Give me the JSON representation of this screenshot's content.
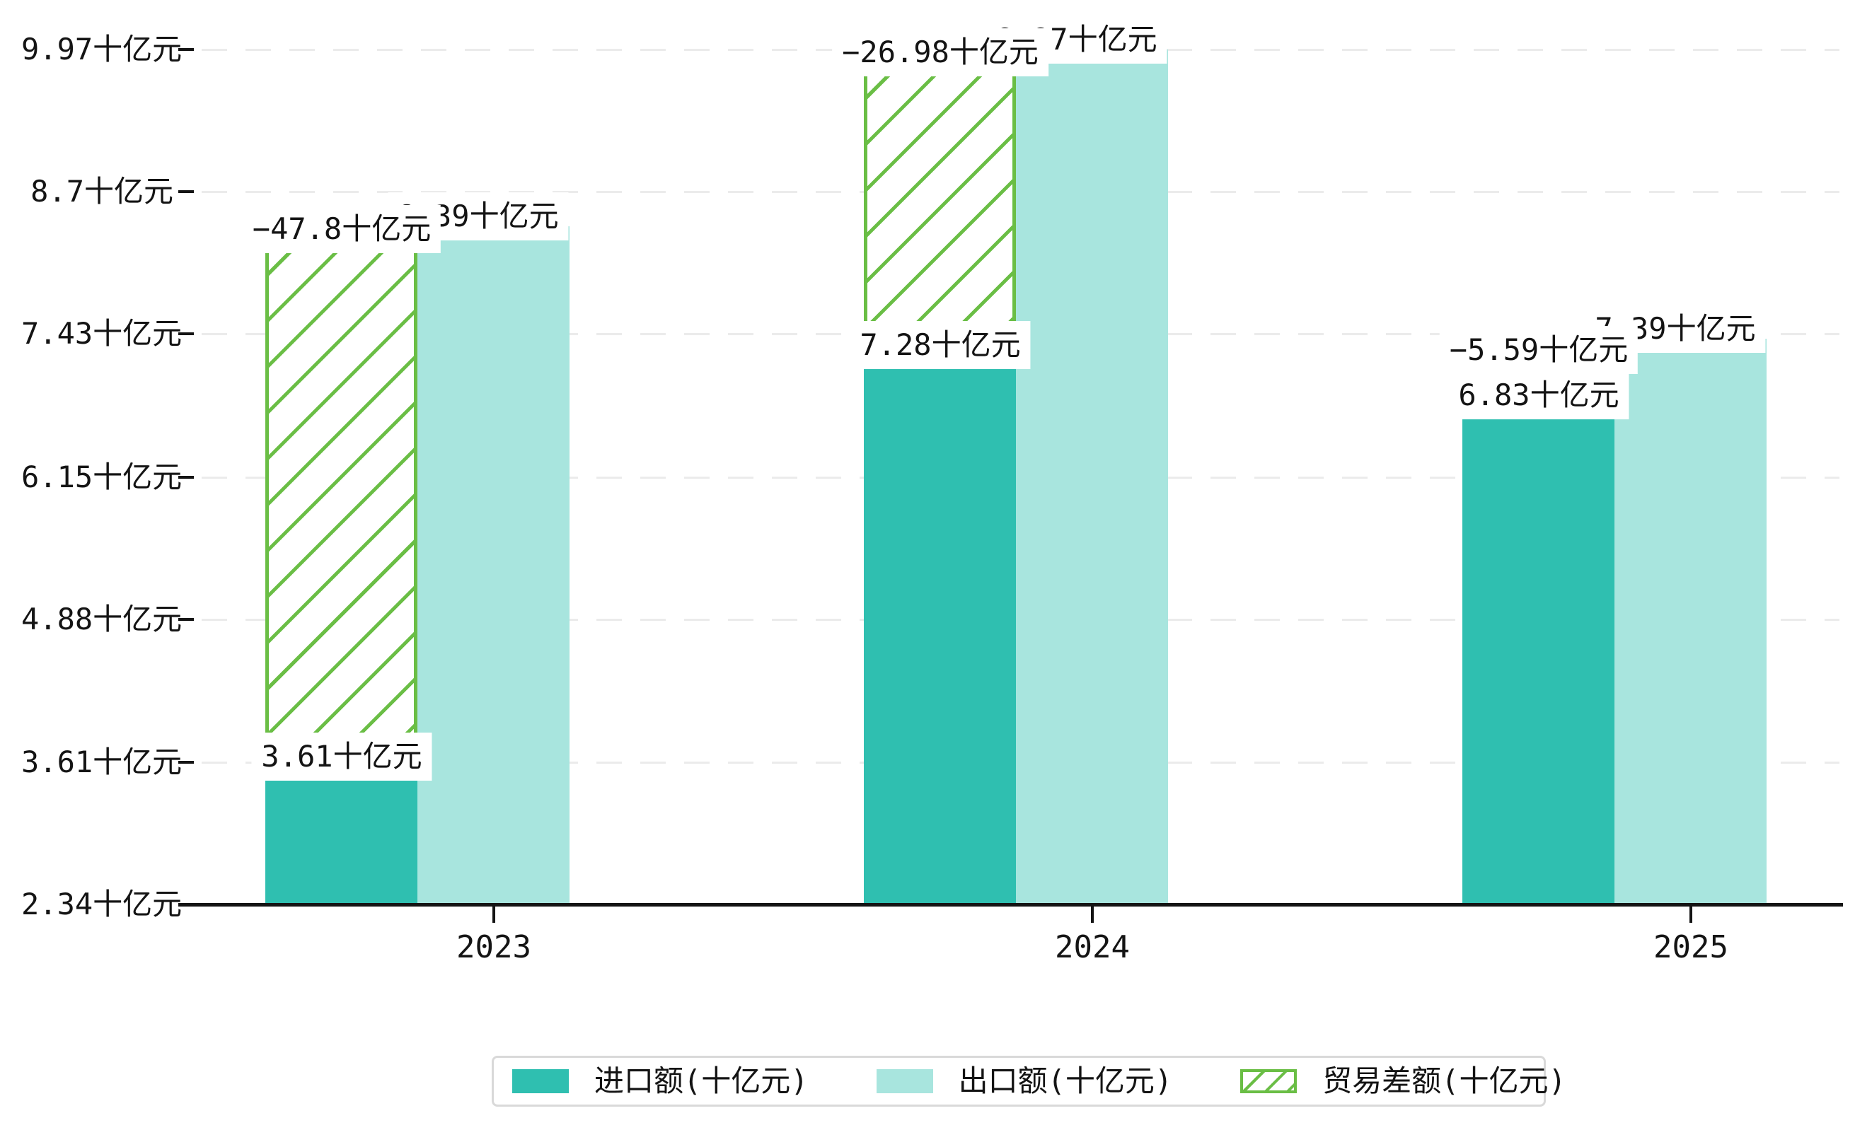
{
  "figure": {
    "background": "#ffffff"
  },
  "chart_data": {
    "type": "bar",
    "categories": [
      "2023",
      "2024",
      "2025"
    ],
    "unit": "十亿元",
    "series": [
      {
        "name": "进口额(十亿元)",
        "role": "import",
        "color": "#2fbfb0",
        "values": [
          3.61,
          7.28,
          6.83
        ],
        "labels": [
          "3.61十亿元",
          "7.28十亿元",
          "6.83十亿元"
        ]
      },
      {
        "name": "出口额(十亿元)",
        "role": "export",
        "color": "#a8e5de",
        "values": [
          8.39,
          9.97,
          7.39
        ],
        "labels": [
          "8.39十亿元",
          "9.97十亿元",
          "7.39十亿元"
        ]
      },
      {
        "name": "贸易差额(十亿元)",
        "role": "trade-balance",
        "color": "#6abe45",
        "pattern": "diagonal-hatch",
        "values": [
          -47.8,
          -26.98,
          -5.59
        ],
        "labels": [
          "−47.8十亿元",
          "−26.98十亿元",
          "−5.59十亿元"
        ],
        "bar_spans": [
          [
            3.61,
            8.39
          ],
          [
            7.28,
            9.97
          ],
          [
            6.83,
            7.39
          ]
        ]
      }
    ],
    "yaxis": {
      "min": 2.34,
      "max": 9.97,
      "grid": "dashed",
      "ticks": [
        {
          "value": 9.97,
          "label": "9.97十亿元"
        },
        {
          "value": 8.7,
          "label": "8.7十亿元"
        },
        {
          "value": 7.43,
          "label": "7.43十亿元"
        },
        {
          "value": 6.15,
          "label": "6.15十亿元"
        },
        {
          "value": 4.88,
          "label": "4.88十亿元"
        },
        {
          "value": 3.61,
          "label": "3.61十亿元"
        },
        {
          "value": 2.34,
          "label": "2.34十亿元"
        }
      ]
    },
    "legend": {
      "position": "bottom-center",
      "items": [
        "进口额(十亿元)",
        "出口额(十亿元)",
        "贸易差额(十亿元)"
      ]
    }
  },
  "colors": {
    "import_bar": "#2fbfb0",
    "export_bar": "#a8e5de",
    "balance_hatch": "#6abe45",
    "gridline": "#ebebeb",
    "axis": "#141414",
    "text": "#141414",
    "legend_border": "#d9d9d9",
    "label_background": "#ffffff"
  }
}
